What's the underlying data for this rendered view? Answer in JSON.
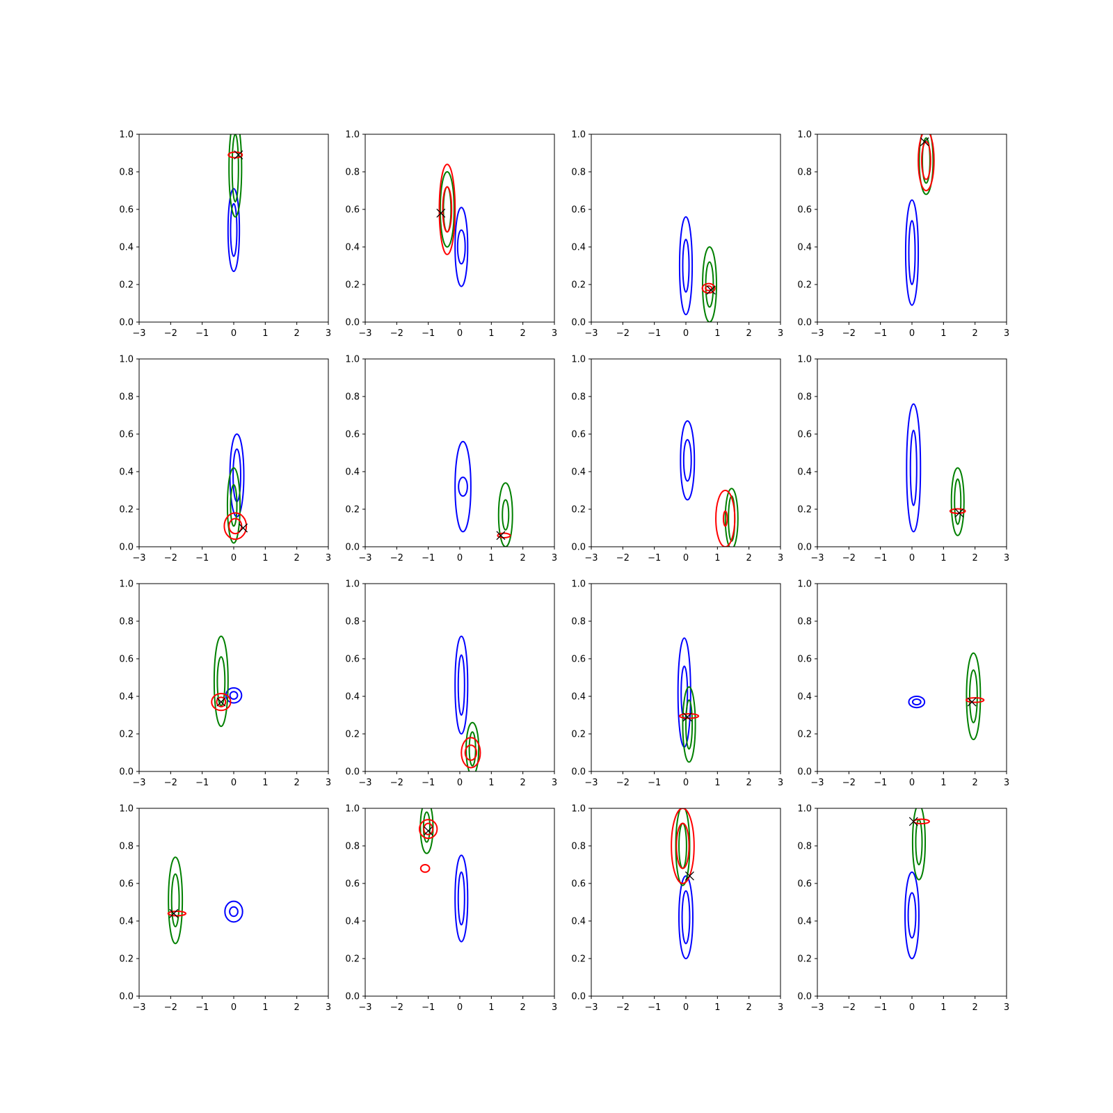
{
  "colors": {
    "blue": "#0000ff",
    "green": "#008000",
    "red": "#ff0000",
    "marker": "#000000"
  },
  "chart_data": [
    {
      "type": "contour",
      "xlim": [
        -3,
        3
      ],
      "ylim": [
        0,
        1
      ],
      "xticks": [
        "−3",
        "−2",
        "−1",
        "0",
        "1",
        "2",
        "3"
      ],
      "yticks": [
        "0.0",
        "0.2",
        "0.4",
        "0.6",
        "0.8",
        "1.0"
      ],
      "contours": [
        {
          "color": "blue",
          "cx": 0.0,
          "cy": 0.49,
          "levels": [
            [
              0.18,
              0.22
            ],
            [
              0.1,
              0.14
            ]
          ]
        },
        {
          "color": "green",
          "cx": 0.05,
          "cy": 0.82,
          "levels": [
            [
              0.2,
              0.26
            ],
            [
              0.1,
              0.18
            ]
          ]
        },
        {
          "color": "red",
          "cx": 0.05,
          "cy": 0.89,
          "levels": [
            [
              0.22,
              0.015
            ]
          ]
        }
      ],
      "marker": [
        0.15,
        0.89
      ]
    },
    {
      "type": "contour",
      "xlim": [
        -3,
        3
      ],
      "ylim": [
        0,
        1
      ],
      "xticks": [
        "−3",
        "−2",
        "−1",
        "0",
        "1",
        "2",
        "3"
      ],
      "yticks": [
        "0.0",
        "0.2",
        "0.4",
        "0.6",
        "0.8",
        "1.0"
      ],
      "contours": [
        {
          "color": "blue",
          "cx": 0.05,
          "cy": 0.4,
          "levels": [
            [
              0.2,
              0.21
            ],
            [
              0.12,
              0.09
            ]
          ]
        },
        {
          "color": "green",
          "cx": -0.4,
          "cy": 0.6,
          "levels": [
            [
              0.22,
              0.2
            ],
            [
              0.12,
              0.12
            ]
          ]
        },
        {
          "color": "red",
          "cx": -0.4,
          "cy": 0.6,
          "levels": [
            [
              0.25,
              0.24
            ],
            [
              0.14,
              0.12
            ]
          ]
        }
      ],
      "marker": [
        -0.6,
        0.58
      ]
    },
    {
      "type": "contour",
      "xlim": [
        -3,
        3
      ],
      "ylim": [
        0,
        1
      ],
      "xticks": [
        "−3",
        "−2",
        "−1",
        "0",
        "1",
        "2",
        "3"
      ],
      "yticks": [
        "0.0",
        "0.2",
        "0.4",
        "0.6",
        "0.8",
        "1.0"
      ],
      "contours": [
        {
          "color": "blue",
          "cx": 0.0,
          "cy": 0.3,
          "levels": [
            [
              0.2,
              0.26
            ],
            [
              0.1,
              0.14
            ]
          ]
        },
        {
          "color": "green",
          "cx": 0.75,
          "cy": 0.2,
          "levels": [
            [
              0.22,
              0.2
            ],
            [
              0.12,
              0.12
            ]
          ]
        },
        {
          "color": "red",
          "cx": 0.72,
          "cy": 0.18,
          "levels": [
            [
              0.2,
              0.025
            ],
            [
              0.1,
              0.012
            ]
          ]
        }
      ],
      "marker": [
        0.8,
        0.17
      ]
    },
    {
      "type": "contour",
      "xlim": [
        -3,
        3
      ],
      "ylim": [
        0,
        1
      ],
      "xticks": [
        "−3",
        "−2",
        "−1",
        "0",
        "1",
        "2",
        "3"
      ],
      "yticks": [
        "0.0",
        "0.2",
        "0.4",
        "0.6",
        "0.8",
        "1.0"
      ],
      "contours": [
        {
          "color": "blue",
          "cx": 0.0,
          "cy": 0.37,
          "levels": [
            [
              0.2,
              0.28
            ],
            [
              0.1,
              0.17
            ]
          ]
        },
        {
          "color": "green",
          "cx": 0.45,
          "cy": 0.86,
          "levels": [
            [
              0.22,
              0.18
            ],
            [
              0.12,
              0.12
            ]
          ]
        },
        {
          "color": "red",
          "cx": 0.45,
          "cy": 0.86,
          "levels": [
            [
              0.25,
              0.16
            ],
            [
              0.14,
              0.1
            ]
          ]
        }
      ],
      "marker": [
        0.4,
        0.96
      ]
    },
    {
      "type": "contour",
      "xlim": [
        -3,
        3
      ],
      "ylim": [
        0,
        1
      ],
      "xticks": [
        "−3",
        "−2",
        "−1",
        "0",
        "1",
        "2",
        "3"
      ],
      "yticks": [
        "0.0",
        "0.2",
        "0.4",
        "0.6",
        "0.8",
        "1.0"
      ],
      "contours": [
        {
          "color": "blue",
          "cx": 0.1,
          "cy": 0.38,
          "levels": [
            [
              0.22,
              0.22
            ],
            [
              0.12,
              0.14
            ]
          ]
        },
        {
          "color": "green",
          "cx": 0.0,
          "cy": 0.22,
          "levels": [
            [
              0.2,
              0.2
            ],
            [
              0.1,
              0.11
            ]
          ]
        },
        {
          "color": "red",
          "cx": 0.05,
          "cy": 0.11,
          "levels": [
            [
              0.35,
              0.07
            ],
            [
              0.2,
              0.04
            ]
          ]
        }
      ],
      "marker": [
        0.3,
        0.1
      ]
    },
    {
      "type": "contour",
      "xlim": [
        -3,
        3
      ],
      "ylim": [
        0,
        1
      ],
      "xticks": [
        "−3",
        "−2",
        "−1",
        "0",
        "1",
        "2",
        "3"
      ],
      "yticks": [
        "0.0",
        "0.2",
        "0.4",
        "0.6",
        "0.8",
        "1.0"
      ],
      "contours": [
        {
          "color": "blue",
          "cx": 0.1,
          "cy": 0.32,
          "levels": [
            [
              0.25,
              0.24
            ],
            [
              0.14,
              0.05
            ]
          ]
        },
        {
          "color": "green",
          "cx": 1.45,
          "cy": 0.17,
          "levels": [
            [
              0.22,
              0.17
            ],
            [
              0.1,
              0.08
            ]
          ]
        },
        {
          "color": "red",
          "cx": 1.4,
          "cy": 0.06,
          "levels": [
            [
              0.2,
              0.012
            ]
          ]
        }
      ],
      "marker": [
        1.3,
        0.06
      ]
    },
    {
      "type": "contour",
      "xlim": [
        -3,
        3
      ],
      "ylim": [
        0,
        1
      ],
      "xticks": [
        "−3",
        "−2",
        "−1",
        "0",
        "1",
        "2",
        "3"
      ],
      "yticks": [
        "0.0",
        "0.2",
        "0.4",
        "0.6",
        "0.8",
        "1.0"
      ],
      "contours": [
        {
          "color": "blue",
          "cx": 0.05,
          "cy": 0.46,
          "levels": [
            [
              0.22,
              0.21
            ],
            [
              0.12,
              0.11
            ]
          ]
        },
        {
          "color": "green",
          "cx": 1.45,
          "cy": 0.15,
          "levels": [
            [
              0.2,
              0.16
            ],
            [
              0.1,
              0.12
            ]
          ]
        },
        {
          "color": "red",
          "cx": 1.25,
          "cy": 0.15,
          "levels": [
            [
              0.3,
              0.15
            ],
            [
              0.06,
              0.04
            ]
          ]
        }
      ],
      "marker": null
    },
    {
      "type": "contour",
      "xlim": [
        -3,
        3
      ],
      "ylim": [
        0,
        1
      ],
      "xticks": [
        "−3",
        "−2",
        "−1",
        "0",
        "1",
        "2",
        "3"
      ],
      "yticks": [
        "0.0",
        "0.2",
        "0.4",
        "0.6",
        "0.8",
        "1.0"
      ],
      "contours": [
        {
          "color": "blue",
          "cx": 0.05,
          "cy": 0.42,
          "levels": [
            [
              0.22,
              0.34
            ],
            [
              0.1,
              0.2
            ]
          ]
        },
        {
          "color": "green",
          "cx": 1.45,
          "cy": 0.24,
          "levels": [
            [
              0.2,
              0.18
            ],
            [
              0.1,
              0.12
            ]
          ]
        },
        {
          "color": "red",
          "cx": 1.45,
          "cy": 0.19,
          "levels": [
            [
              0.24,
              0.012
            ]
          ]
        }
      ],
      "marker": [
        1.5,
        0.18
      ]
    },
    {
      "type": "contour",
      "xlim": [
        -3,
        3
      ],
      "ylim": [
        0,
        1
      ],
      "xticks": [
        "−3",
        "−2",
        "−1",
        "0",
        "1",
        "2",
        "3"
      ],
      "yticks": [
        "0.0",
        "0.2",
        "0.4",
        "0.6",
        "0.8",
        "1.0"
      ],
      "contours": [
        {
          "color": "blue",
          "cx": 0.0,
          "cy": 0.405,
          "levels": [
            [
              0.25,
              0.04
            ],
            [
              0.12,
              0.02
            ]
          ]
        },
        {
          "color": "green",
          "cx": -0.4,
          "cy": 0.48,
          "levels": [
            [
              0.22,
              0.24
            ],
            [
              0.12,
              0.13
            ]
          ]
        },
        {
          "color": "red",
          "cx": -0.4,
          "cy": 0.37,
          "levels": [
            [
              0.3,
              0.045
            ],
            [
              0.14,
              0.025
            ]
          ]
        }
      ],
      "marker": [
        -0.4,
        0.37
      ]
    },
    {
      "type": "contour",
      "xlim": [
        -3,
        3
      ],
      "ylim": [
        0,
        1
      ],
      "xticks": [
        "−3",
        "−2",
        "−1",
        "0",
        "1",
        "2",
        "3"
      ],
      "yticks": [
        "0.0",
        "0.2",
        "0.4",
        "0.6",
        "0.8",
        "1.0"
      ],
      "contours": [
        {
          "color": "blue",
          "cx": 0.05,
          "cy": 0.46,
          "levels": [
            [
              0.2,
              0.26
            ],
            [
              0.1,
              0.16
            ]
          ]
        },
        {
          "color": "green",
          "cx": 0.4,
          "cy": 0.12,
          "levels": [
            [
              0.2,
              0.14
            ],
            [
              0.1,
              0.09
            ]
          ]
        },
        {
          "color": "red",
          "cx": 0.35,
          "cy": 0.1,
          "levels": [
            [
              0.3,
              0.08
            ],
            [
              0.18,
              0.04
            ]
          ]
        }
      ],
      "marker": null
    },
    {
      "type": "contour",
      "xlim": [
        -3,
        3
      ],
      "ylim": [
        0,
        1
      ],
      "xticks": [
        "−3",
        "−2",
        "−1",
        "0",
        "1",
        "2",
        "3"
      ],
      "yticks": [
        "0.0",
        "0.2",
        "0.4",
        "0.6",
        "0.8",
        "1.0"
      ],
      "contours": [
        {
          "color": "blue",
          "cx": -0.05,
          "cy": 0.42,
          "levels": [
            [
              0.2,
              0.29
            ],
            [
              0.1,
              0.14
            ]
          ]
        },
        {
          "color": "green",
          "cx": 0.1,
          "cy": 0.25,
          "levels": [
            [
              0.2,
              0.2
            ],
            [
              0.1,
              0.13
            ]
          ]
        },
        {
          "color": "red",
          "cx": 0.1,
          "cy": 0.295,
          "levels": [
            [
              0.3,
              0.012
            ]
          ]
        }
      ],
      "marker": [
        0.05,
        0.29
      ]
    },
    {
      "type": "contour",
      "xlim": [
        -3,
        3
      ],
      "ylim": [
        0,
        1
      ],
      "xticks": [
        "−3",
        "−2",
        "−1",
        "0",
        "1",
        "2",
        "3"
      ],
      "yticks": [
        "0.0",
        "0.2",
        "0.4",
        "0.6",
        "0.8",
        "1.0"
      ],
      "contours": [
        {
          "color": "blue",
          "cx": 0.15,
          "cy": 0.37,
          "levels": [
            [
              0.25,
              0.03
            ],
            [
              0.13,
              0.015
            ]
          ]
        },
        {
          "color": "green",
          "cx": 1.95,
          "cy": 0.4,
          "levels": [
            [
              0.22,
              0.23
            ],
            [
              0.12,
              0.14
            ]
          ]
        },
        {
          "color": "red",
          "cx": 2.0,
          "cy": 0.38,
          "levels": [
            [
              0.28,
              0.012
            ]
          ]
        }
      ],
      "marker": [
        1.9,
        0.37
      ]
    },
    {
      "type": "contour",
      "xlim": [
        -3,
        3
      ],
      "ylim": [
        0,
        1
      ],
      "xticks": [
        "−3",
        "−2",
        "−1",
        "0",
        "1",
        "2",
        "3"
      ],
      "yticks": [
        "0.0",
        "0.2",
        "0.4",
        "0.6",
        "0.8",
        "1.0"
      ],
      "contours": [
        {
          "color": "blue",
          "cx": 0.0,
          "cy": 0.45,
          "levels": [
            [
              0.28,
              0.055
            ],
            [
              0.13,
              0.025
            ]
          ]
        },
        {
          "color": "green",
          "cx": -1.85,
          "cy": 0.51,
          "levels": [
            [
              0.22,
              0.23
            ],
            [
              0.12,
              0.14
            ]
          ]
        },
        {
          "color": "red",
          "cx": -1.8,
          "cy": 0.44,
          "levels": [
            [
              0.28,
              0.012
            ]
          ]
        }
      ],
      "marker": [
        -1.9,
        0.44
      ]
    },
    {
      "type": "contour",
      "xlim": [
        -3,
        3
      ],
      "ylim": [
        0,
        1
      ],
      "xticks": [
        "−3",
        "−2",
        "−1",
        "0",
        "1",
        "2",
        "3"
      ],
      "yticks": [
        "0.0",
        "0.2",
        "0.4",
        "0.6",
        "0.8",
        "1.0"
      ],
      "contours": [
        {
          "color": "blue",
          "cx": 0.05,
          "cy": 0.52,
          "levels": [
            [
              0.2,
              0.23
            ],
            [
              0.1,
              0.14
            ]
          ]
        },
        {
          "color": "green",
          "cx": -1.05,
          "cy": 0.9,
          "levels": [
            [
              0.2,
              0.14
            ],
            [
              0.1,
              0.08
            ]
          ]
        },
        {
          "color": "red",
          "cx": -1.0,
          "cy": 0.89,
          "levels": [
            [
              0.28,
              0.05
            ],
            [
              0.14,
              0.03
            ]
          ]
        },
        {
          "color": "red",
          "cx": -1.1,
          "cy": 0.68,
          "levels": [
            [
              0.14,
              0.02
            ]
          ]
        }
      ],
      "marker": [
        -1.0,
        0.88
      ]
    },
    {
      "type": "contour",
      "xlim": [
        -3,
        3
      ],
      "ylim": [
        0,
        1
      ],
      "xticks": [
        "−3",
        "−2",
        "−1",
        "0",
        "1",
        "2",
        "3"
      ],
      "yticks": [
        "0.0",
        "0.2",
        "0.4",
        "0.6",
        "0.8",
        "1.0"
      ],
      "contours": [
        {
          "color": "blue",
          "cx": 0.0,
          "cy": 0.42,
          "levels": [
            [
              0.22,
              0.22
            ],
            [
              0.12,
              0.14
            ]
          ]
        },
        {
          "color": "green",
          "cx": -0.1,
          "cy": 0.8,
          "levels": [
            [
              0.22,
              0.21
            ],
            [
              0.12,
              0.12
            ]
          ]
        },
        {
          "color": "red",
          "cx": -0.1,
          "cy": 0.8,
          "levels": [
            [
              0.36,
              0.2
            ],
            [
              0.2,
              0.12
            ]
          ]
        }
      ],
      "marker": [
        0.12,
        0.64
      ]
    },
    {
      "type": "contour",
      "xlim": [
        -3,
        3
      ],
      "ylim": [
        0,
        1
      ],
      "xticks": [
        "−3",
        "−2",
        "−1",
        "0",
        "1",
        "2",
        "3"
      ],
      "yticks": [
        "0.0",
        "0.2",
        "0.4",
        "0.6",
        "0.8",
        "1.0"
      ],
      "contours": [
        {
          "color": "blue",
          "cx": 0.0,
          "cy": 0.43,
          "levels": [
            [
              0.22,
              0.23
            ],
            [
              0.12,
              0.12
            ]
          ]
        },
        {
          "color": "green",
          "cx": 0.22,
          "cy": 0.82,
          "levels": [
            [
              0.2,
              0.2
            ],
            [
              0.1,
              0.12
            ]
          ]
        },
        {
          "color": "red",
          "cx": 0.3,
          "cy": 0.93,
          "levels": [
            [
              0.25,
              0.012
            ]
          ]
        }
      ],
      "marker": [
        0.05,
        0.93
      ]
    }
  ]
}
